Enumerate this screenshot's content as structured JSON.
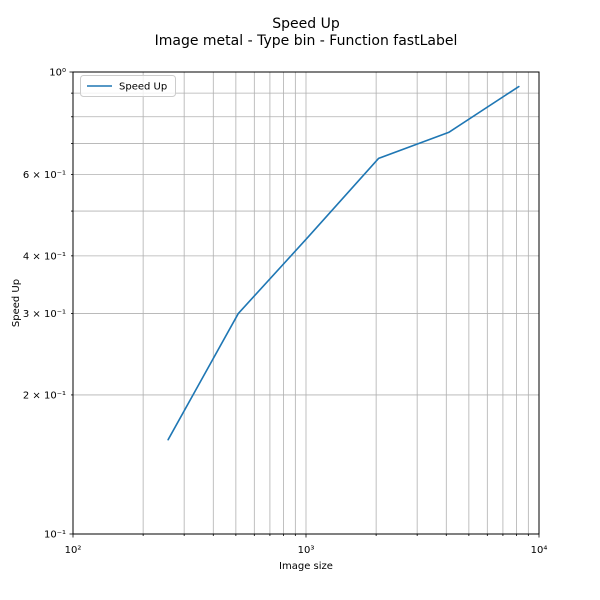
{
  "title": {
    "line1": "Speed Up",
    "line2": "Image metal - Type bin - Function fastLabel"
  },
  "legend": {
    "label": "Speed Up",
    "position": "upper left"
  },
  "chart_data": {
    "type": "line",
    "title": "Speed Up",
    "subtitle": "Image metal - Type bin - Function fastLabel",
    "xlabel": "Image size",
    "ylabel": "Speed Up",
    "x_scale": "log",
    "y_scale": "log",
    "xlim": [
      100,
      10000
    ],
    "ylim": [
      0.1,
      1.0
    ],
    "grid": "both",
    "legend_position": "upper left",
    "series": [
      {
        "name": "Speed Up",
        "color": "#1f77b4",
        "x": [
          256,
          512,
          1024,
          2048,
          4096,
          8192
        ],
        "y": [
          0.16,
          0.3,
          0.44,
          0.65,
          0.74,
          0.93
        ]
      }
    ],
    "x_ticks": [
      {
        "v": 100,
        "label": "10²"
      },
      {
        "v": 1000,
        "label": "10³"
      },
      {
        "v": 10000,
        "label": "10⁴"
      }
    ],
    "y_ticks": [
      {
        "v": 1.0,
        "label": "10⁰"
      },
      {
        "v": 0.6,
        "label": "6 × 10⁻¹"
      },
      {
        "v": 0.4,
        "label": "4 × 10⁻¹"
      },
      {
        "v": 0.3,
        "label": "3 × 10⁻¹"
      },
      {
        "v": 0.2,
        "label": "2 × 10⁻¹"
      },
      {
        "v": 0.1,
        "label": "10⁻¹"
      }
    ],
    "colors": {
      "line": "#1f77b4",
      "grid": "#b0b0b0",
      "spine": "#000000",
      "background": "#ffffff"
    }
  }
}
